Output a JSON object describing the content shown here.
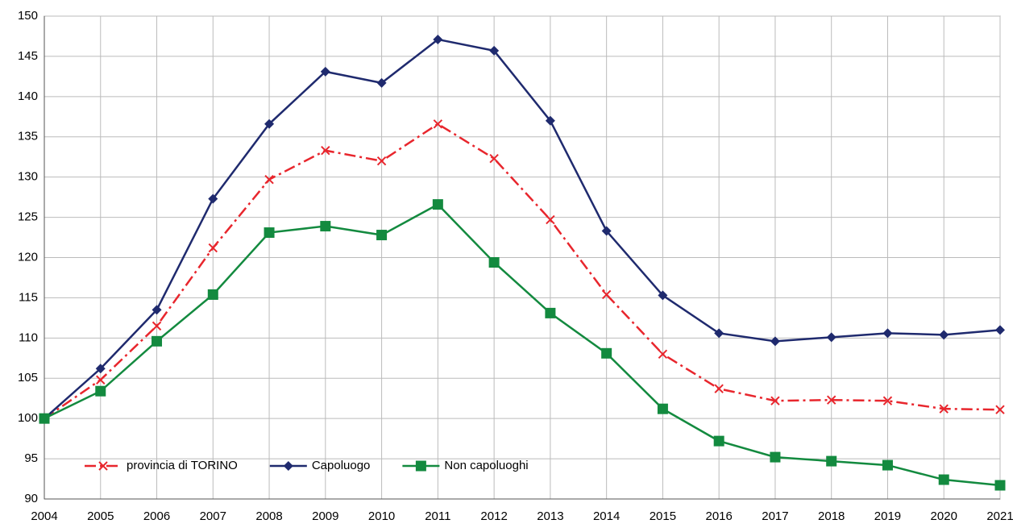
{
  "chart_data": {
    "type": "line",
    "x": [
      2004,
      2005,
      2006,
      2007,
      2008,
      2009,
      2010,
      2011,
      2012,
      2013,
      2014,
      2015,
      2016,
      2017,
      2018,
      2019,
      2020,
      2021
    ],
    "xlim": [
      2004,
      2021
    ],
    "xticks": [
      2004,
      2005,
      2006,
      2007,
      2008,
      2009,
      2010,
      2011,
      2012,
      2013,
      2014,
      2015,
      2016,
      2017,
      2018,
      2019,
      2020,
      2021
    ],
    "ylim": [
      90,
      150
    ],
    "yticks": [
      90,
      95,
      100,
      105,
      110,
      115,
      120,
      125,
      130,
      135,
      140,
      145,
      150
    ],
    "grid": true,
    "legend": "bottom-left",
    "series": [
      {
        "name": "provincia di TORINO",
        "color": "#e8262d",
        "marker": "x",
        "dash": "dashdot",
        "values": [
          100,
          104.8,
          111.5,
          121.2,
          129.7,
          133.3,
          132,
          136.6,
          132.3,
          124.7,
          115.4,
          108,
          103.7,
          102.2,
          102.3,
          102.2,
          101.2,
          101.1
        ]
      },
      {
        "name": "Capoluogo",
        "color": "#1f2a6e",
        "marker": "diamond",
        "dash": "solid",
        "values": [
          100,
          106.2,
          113.5,
          127.3,
          136.6,
          143.1,
          141.7,
          147.1,
          145.7,
          137,
          123.3,
          115.3,
          110.6,
          109.6,
          110.1,
          110.6,
          110.4,
          111
        ]
      },
      {
        "name": "Non capoluoghi",
        "color": "#138a3f",
        "marker": "square",
        "dash": "solid",
        "values": [
          100,
          103.4,
          109.6,
          115.4,
          123.1,
          123.9,
          122.8,
          126.6,
          119.4,
          113.1,
          108.1,
          101.2,
          97.2,
          95.2,
          94.7,
          94.2,
          92.4,
          91.7
        ]
      }
    ]
  }
}
